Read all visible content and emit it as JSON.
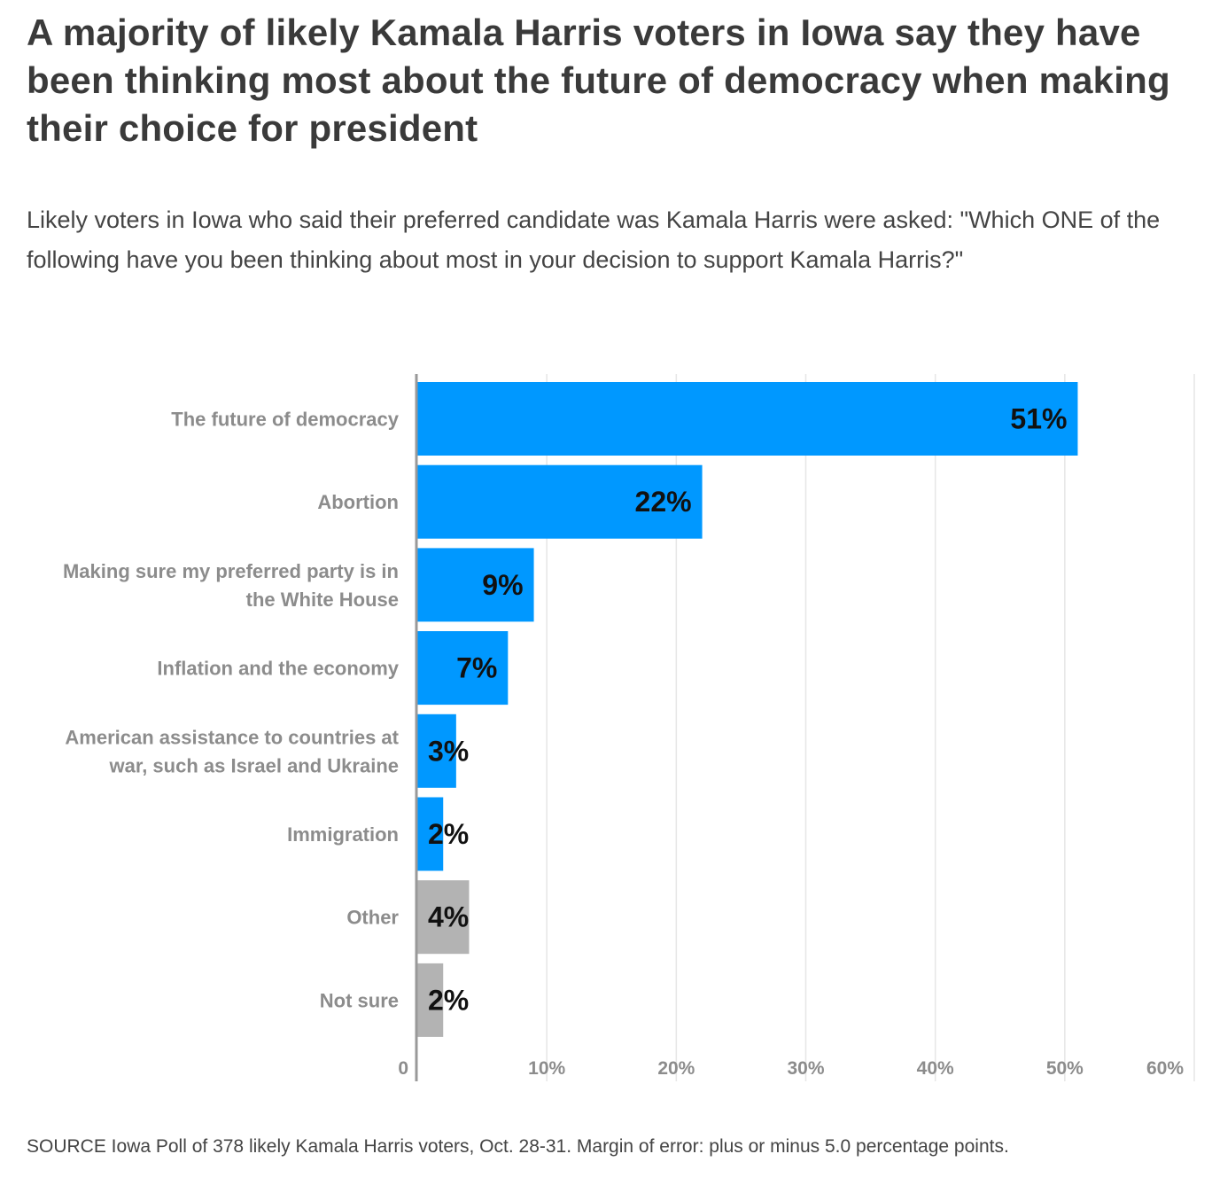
{
  "title": "A majority of likely Kamala Harris voters in Iowa say they have been thinking most about the future of democracy when making their choice for president",
  "subtitle": "Likely voters in Iowa who said their preferred candidate was Kamala Harris were asked: \"Which ONE of the following have you been thinking about most in your decision to support Kamala Harris?\"",
  "source": "SOURCE Iowa Poll of 378 likely Kamala Harris voters, Oct. 28-31. Margin of error: plus or minus 5.0 percentage points.",
  "colors": {
    "primary": "#0098FF",
    "secondary": "#B3B3B3",
    "gridline": "#e6e6e6",
    "axis": "#999999",
    "label": "#8c8c8c",
    "value_label": "#111111"
  },
  "chart_data": {
    "type": "bar",
    "orientation": "horizontal",
    "categories": [
      [
        "The future of democracy"
      ],
      [
        "Abortion"
      ],
      [
        "Making sure my preferred party is in",
        "the White House"
      ],
      [
        "Inflation and the economy"
      ],
      [
        "American assistance to countries at",
        "war, such as Israel and Ukraine"
      ],
      [
        "Immigration"
      ],
      [
        "Other"
      ],
      [
        "Not sure"
      ]
    ],
    "values": [
      51,
      22,
      9,
      7,
      3,
      2,
      4,
      2
    ],
    "value_labels": [
      "51%",
      "22%",
      "9%",
      "7%",
      "3%",
      "2%",
      "4%",
      "2%"
    ],
    "bar_colors": [
      "primary",
      "primary",
      "primary",
      "primary",
      "primary",
      "primary",
      "secondary",
      "secondary"
    ],
    "xlim": [
      0,
      60
    ],
    "xticks": [
      0,
      10,
      20,
      30,
      40,
      50,
      60
    ],
    "xtick_labels": [
      "0",
      "10%",
      "20%",
      "30%",
      "40%",
      "50%",
      "60%"
    ],
    "grid": true,
    "legend": "none"
  }
}
